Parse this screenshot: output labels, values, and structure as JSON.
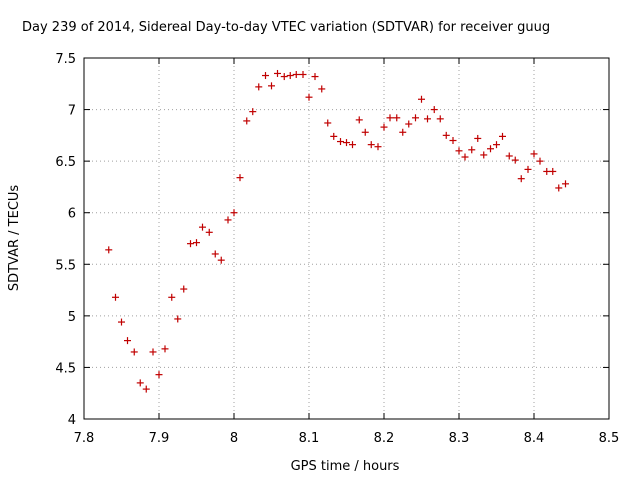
{
  "chart_data": {
    "type": "scatter",
    "title": "Day 239 of 2014, Sidereal Day-to-day VTEC variation (SDTVAR) for receiver guug",
    "xlabel": "GPS time / hours",
    "ylabel": "SDTVAR / TECUs",
    "xlim": [
      7.8,
      8.5
    ],
    "ylim": [
      4,
      7.5
    ],
    "xticks": [
      7.8,
      7.9,
      8.0,
      8.1,
      8.2,
      8.3,
      8.4,
      8.5
    ],
    "xtick_labels": [
      "7.8",
      "7.9",
      "8",
      "8.1",
      "8.2",
      "8.3",
      "8.4",
      "8.5"
    ],
    "yticks": [
      4,
      4.5,
      5,
      5.5,
      6,
      6.5,
      7,
      7.5
    ],
    "ytick_labels": [
      "4",
      "4.5",
      "5",
      "5.5",
      "6",
      "6.5",
      "7",
      "7.5"
    ],
    "grid": true,
    "marker": "+",
    "color": "#c00000",
    "series": [
      {
        "name": "SDTVAR",
        "x": [
          7.833,
          7.842,
          7.85,
          7.858,
          7.867,
          7.875,
          7.883,
          7.892,
          7.9,
          7.908,
          7.917,
          7.925,
          7.933,
          7.942,
          7.95,
          7.958,
          7.967,
          7.975,
          7.983,
          7.992,
          8.0,
          8.008,
          8.017,
          8.025,
          8.033,
          8.042,
          8.05,
          8.058,
          8.067,
          8.075,
          8.083,
          8.092,
          8.1,
          8.108,
          8.117,
          8.125,
          8.133,
          8.142,
          8.15,
          8.158,
          8.167,
          8.175,
          8.183,
          8.192,
          8.2,
          8.208,
          8.217,
          8.225,
          8.233,
          8.242,
          8.25,
          8.258,
          8.267,
          8.275,
          8.283,
          8.292,
          8.3,
          8.308,
          8.317,
          8.325,
          8.333,
          8.342,
          8.35,
          8.358,
          8.367,
          8.375,
          8.383,
          8.392,
          8.4,
          8.408,
          8.417,
          8.425,
          8.433,
          8.442
        ],
        "y": [
          5.64,
          5.18,
          4.94,
          4.76,
          4.65,
          4.35,
          4.29,
          4.65,
          4.43,
          4.68,
          5.18,
          4.97,
          5.26,
          5.7,
          5.71,
          5.86,
          5.81,
          5.6,
          5.54,
          5.93,
          6.0,
          6.34,
          6.89,
          6.98,
          7.22,
          7.33,
          7.23,
          7.35,
          7.32,
          7.33,
          7.34,
          7.34,
          7.12,
          7.32,
          7.2,
          6.87,
          6.74,
          6.69,
          6.68,
          6.66,
          6.9,
          6.78,
          6.66,
          6.64,
          6.83,
          6.92,
          6.92,
          6.78,
          6.86,
          6.92,
          7.1,
          6.91,
          7.0,
          6.91,
          6.75,
          6.7,
          6.6,
          6.54,
          6.61,
          6.72,
          6.56,
          6.62,
          6.66,
          6.74,
          6.55,
          6.51,
          6.33,
          6.42,
          6.57,
          6.5,
          6.4,
          6.4,
          6.24,
          6.28
        ]
      }
    ]
  }
}
